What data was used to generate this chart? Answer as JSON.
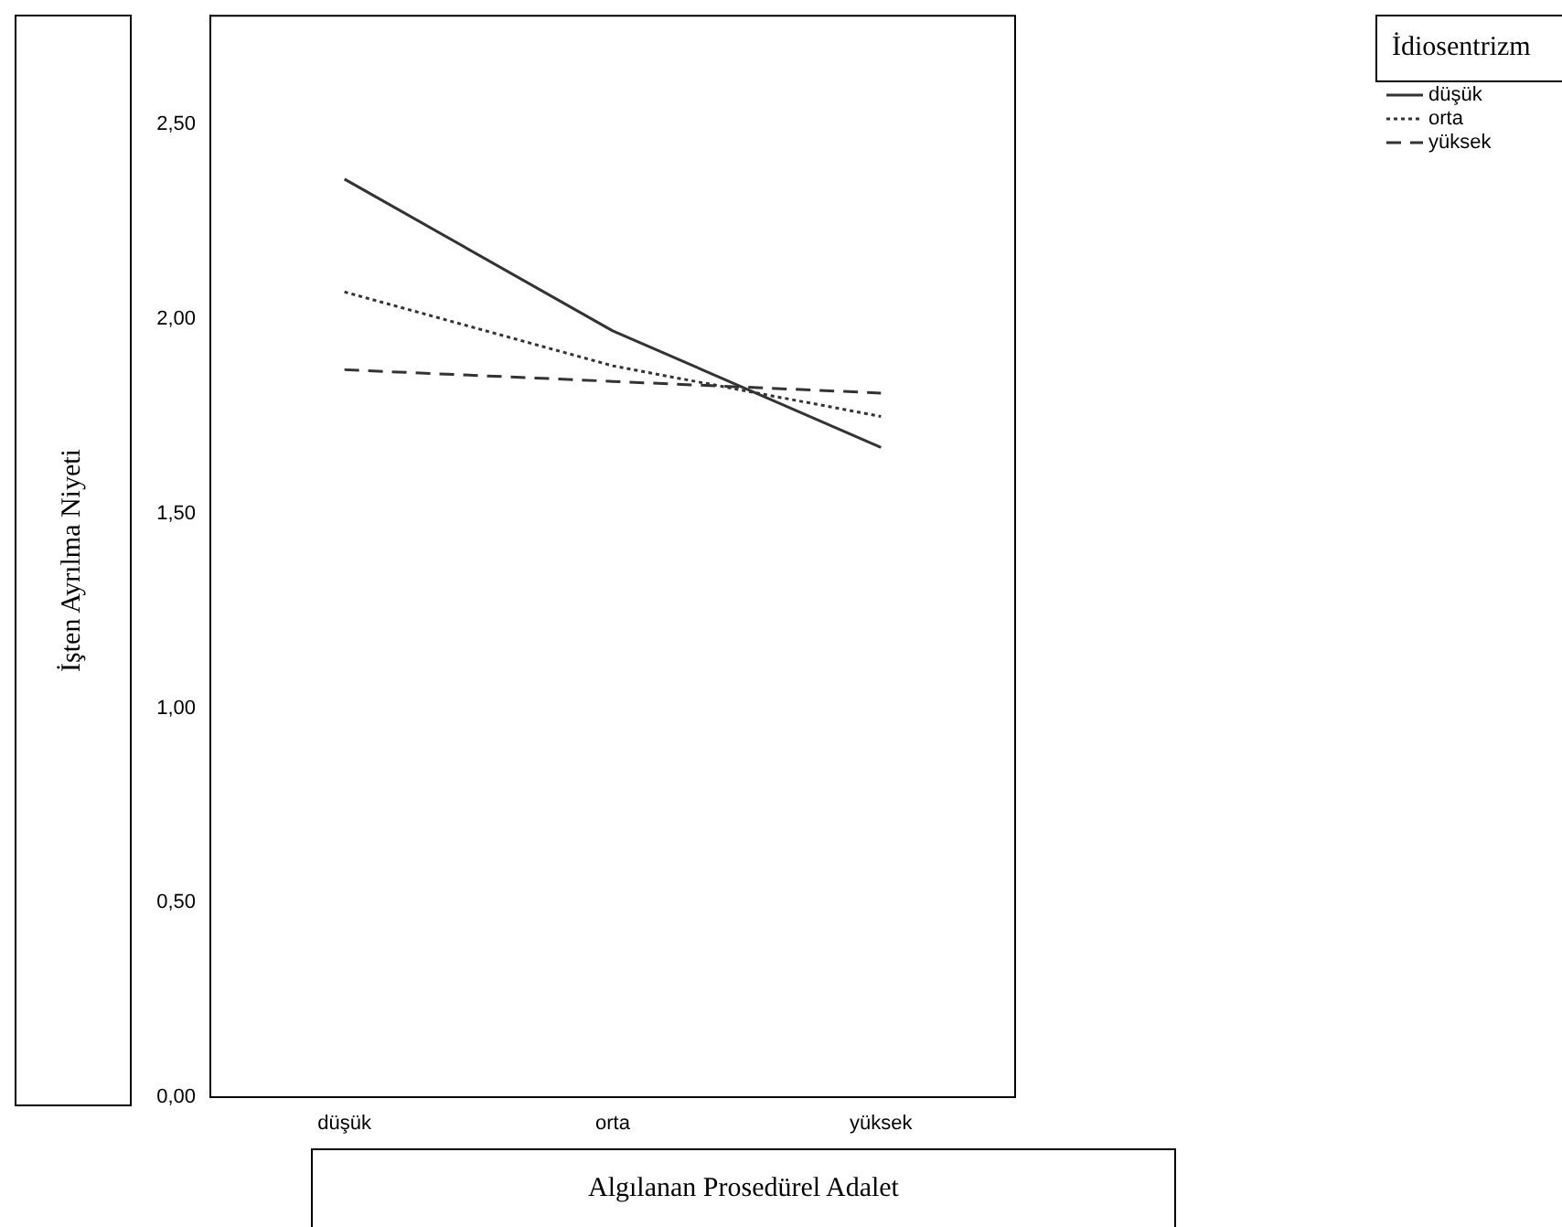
{
  "chart_data": {
    "type": "line",
    "xlabel": "Algılanan Prosedürel Adalet",
    "ylabel": "İşten Ayrılma Niyeti",
    "legend_title": "İdiosentrizm",
    "categories": [
      "düşük",
      "orta",
      "yüksek"
    ],
    "series": [
      {
        "name": "düşük",
        "color": "#333333",
        "line_style": "solid",
        "values": [
          2.36,
          1.97,
          1.67
        ]
      },
      {
        "name": "orta",
        "color": "#333333",
        "line_style": "dotted",
        "values": [
          2.07,
          1.88,
          1.75
        ]
      },
      {
        "name": "yüksek",
        "color": "#333333",
        "line_style": "dashed",
        "values": [
          1.87,
          1.84,
          1.81
        ]
      }
    ],
    "ylim": [
      0,
      2.78
    ],
    "yticks": [
      {
        "value": 0,
        "label": "0,00"
      },
      {
        "value": 0.5,
        "label": "0,50"
      },
      {
        "value": 1,
        "label": "1,00"
      },
      {
        "value": 1.5,
        "label": "1,50"
      },
      {
        "value": 2,
        "label": "2,00"
      },
      {
        "value": 2.5,
        "label": "2,50"
      }
    ],
    "grid": false,
    "legend": "top right",
    "marker": "none"
  }
}
